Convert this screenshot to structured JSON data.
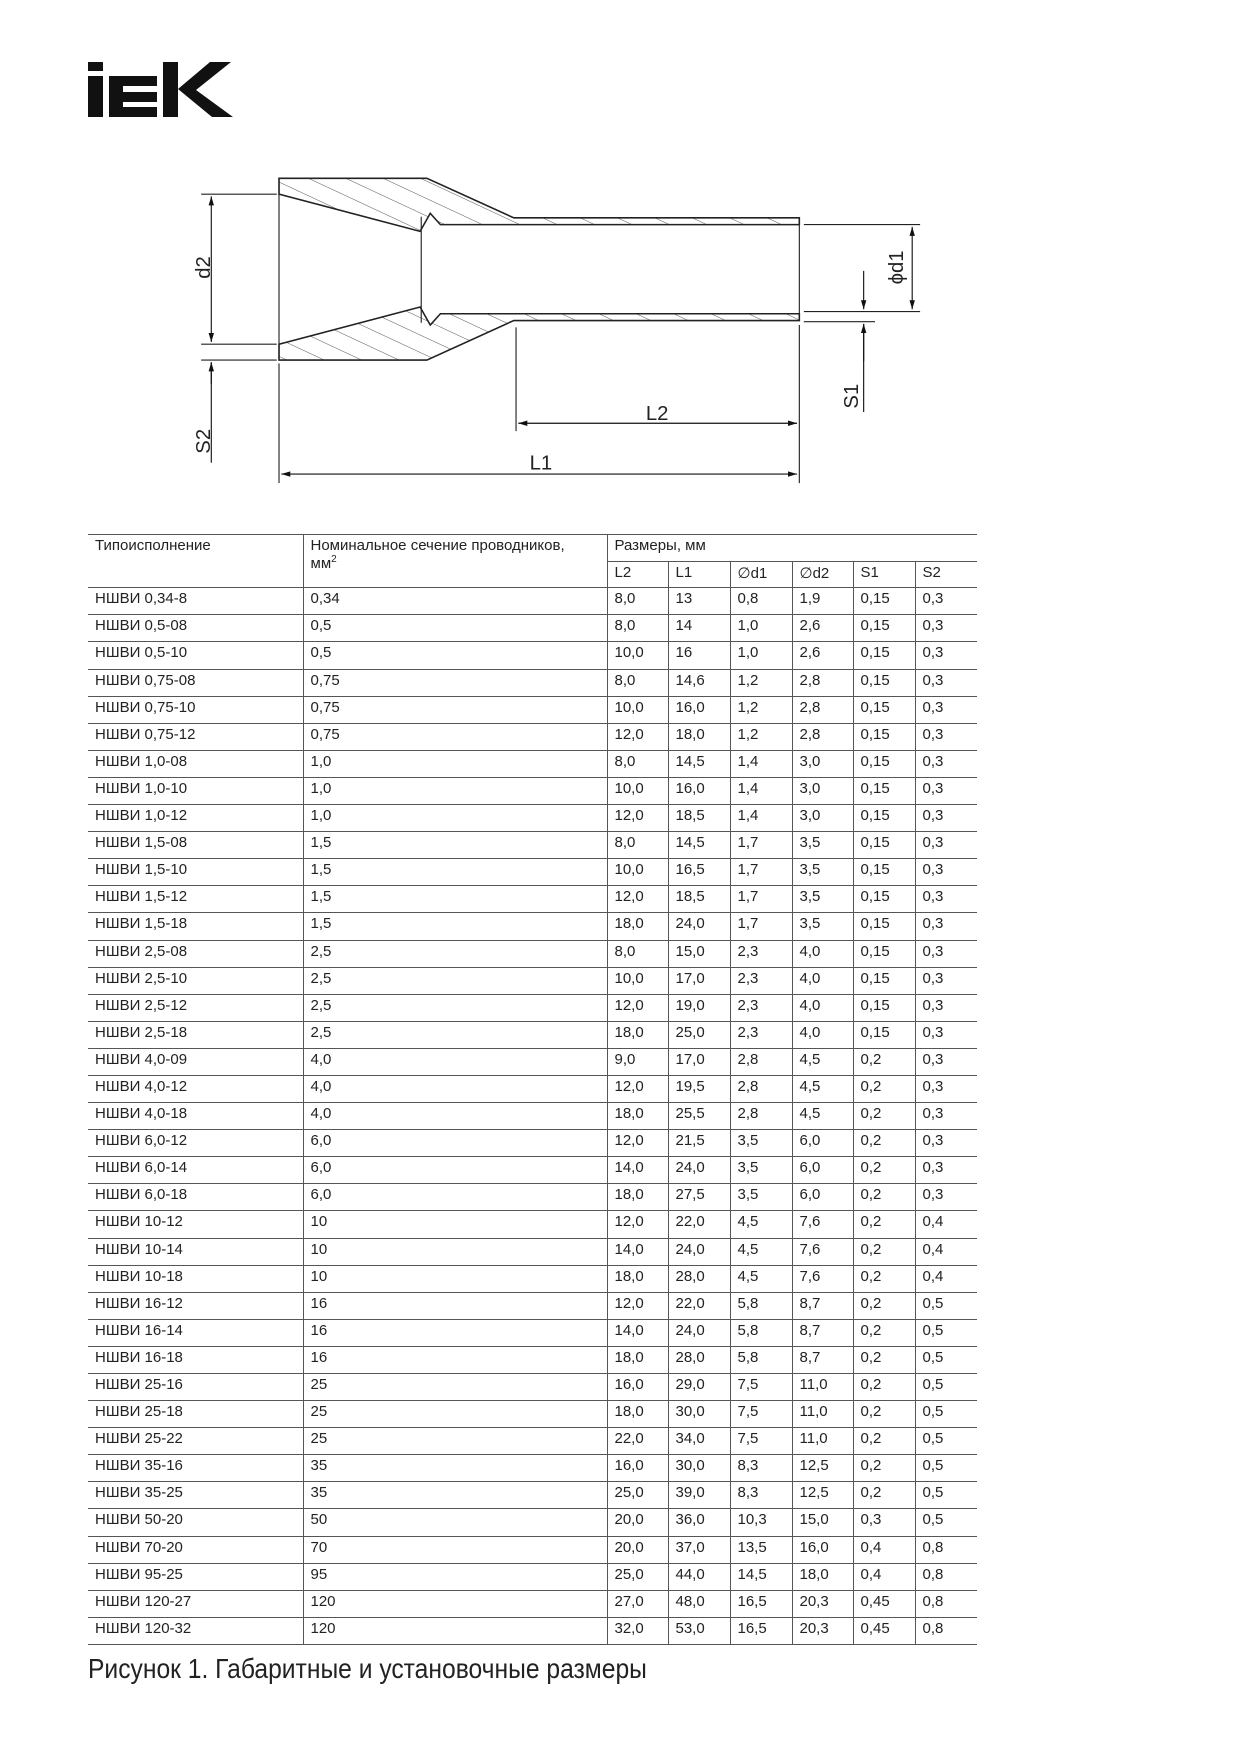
{
  "logo": {
    "text": "IEK"
  },
  "drawing": {
    "labels": {
      "d2": "d2",
      "s2": "S2",
      "d1": "ϕd1",
      "s1": "S1",
      "l2": "L2",
      "l1": "L1"
    }
  },
  "table": {
    "headers": {
      "type": "Типоисполнение",
      "section": "Номинальное сечение проводников,",
      "section_unit": "мм",
      "section_unit_sup": "2",
      "dimensions": "Размеры, мм",
      "columns": [
        "L2",
        "L1",
        "∅d1",
        "∅d2",
        "S1",
        "S2"
      ]
    },
    "rows": [
      [
        "НШВИ 0,34-8",
        "0,34",
        "8,0",
        "13",
        "0,8",
        "1,9",
        "0,15",
        "0,3"
      ],
      [
        "НШВИ 0,5-08",
        "0,5",
        "8,0",
        "14",
        "1,0",
        "2,6",
        "0,15",
        "0,3"
      ],
      [
        "НШВИ 0,5-10",
        "0,5",
        "10,0",
        "16",
        "1,0",
        "2,6",
        "0,15",
        "0,3"
      ],
      [
        "НШВИ 0,75-08",
        "0,75",
        "8,0",
        "14,6",
        "1,2",
        "2,8",
        "0,15",
        "0,3"
      ],
      [
        "НШВИ 0,75-10",
        "0,75",
        "10,0",
        "16,0",
        "1,2",
        "2,8",
        "0,15",
        "0,3"
      ],
      [
        "НШВИ 0,75-12",
        "0,75",
        "12,0",
        "18,0",
        "1,2",
        "2,8",
        "0,15",
        "0,3"
      ],
      [
        "НШВИ 1,0-08",
        "1,0",
        "8,0",
        "14,5",
        "1,4",
        "3,0",
        "0,15",
        "0,3"
      ],
      [
        "НШВИ 1,0-10",
        "1,0",
        "10,0",
        "16,0",
        "1,4",
        "3,0",
        "0,15",
        "0,3"
      ],
      [
        "НШВИ 1,0-12",
        "1,0",
        "12,0",
        "18,5",
        "1,4",
        "3,0",
        "0,15",
        "0,3"
      ],
      [
        "НШВИ 1,5-08",
        "1,5",
        "8,0",
        "14,5",
        "1,7",
        "3,5",
        "0,15",
        "0,3"
      ],
      [
        "НШВИ 1,5-10",
        "1,5",
        "10,0",
        "16,5",
        "1,7",
        "3,5",
        "0,15",
        "0,3"
      ],
      [
        "НШВИ 1,5-12",
        "1,5",
        "12,0",
        "18,5",
        "1,7",
        "3,5",
        "0,15",
        "0,3"
      ],
      [
        "НШВИ 1,5-18",
        "1,5",
        "18,0",
        "24,0",
        "1,7",
        "3,5",
        "0,15",
        "0,3"
      ],
      [
        "НШВИ 2,5-08",
        "2,5",
        "8,0",
        "15,0",
        "2,3",
        "4,0",
        "0,15",
        "0,3"
      ],
      [
        "НШВИ 2,5-10",
        "2,5",
        "10,0",
        "17,0",
        "2,3",
        "4,0",
        "0,15",
        "0,3"
      ],
      [
        "НШВИ 2,5-12",
        "2,5",
        "12,0",
        "19,0",
        "2,3",
        "4,0",
        "0,15",
        "0,3"
      ],
      [
        "НШВИ 2,5-18",
        "2,5",
        "18,0",
        "25,0",
        "2,3",
        "4,0",
        "0,15",
        "0,3"
      ],
      [
        "НШВИ 4,0-09",
        "4,0",
        "9,0",
        "17,0",
        "2,8",
        "4,5",
        "0,2",
        "0,3"
      ],
      [
        "НШВИ 4,0-12",
        "4,0",
        "12,0",
        "19,5",
        "2,8",
        "4,5",
        "0,2",
        "0,3"
      ],
      [
        "НШВИ 4,0-18",
        "4,0",
        "18,0",
        "25,5",
        "2,8",
        "4,5",
        "0,2",
        "0,3"
      ],
      [
        "НШВИ 6,0-12",
        "6,0",
        "12,0",
        "21,5",
        "3,5",
        "6,0",
        "0,2",
        "0,3"
      ],
      [
        "НШВИ 6,0-14",
        "6,0",
        "14,0",
        "24,0",
        "3,5",
        "6,0",
        "0,2",
        "0,3"
      ],
      [
        "НШВИ 6,0-18",
        "6,0",
        "18,0",
        "27,5",
        "3,5",
        "6,0",
        "0,2",
        "0,3"
      ],
      [
        "НШВИ 10-12",
        "10",
        "12,0",
        "22,0",
        "4,5",
        "7,6",
        "0,2",
        "0,4"
      ],
      [
        "НШВИ 10-14",
        "10",
        "14,0",
        "24,0",
        "4,5",
        "7,6",
        "0,2",
        "0,4"
      ],
      [
        "НШВИ 10-18",
        "10",
        "18,0",
        "28,0",
        "4,5",
        "7,6",
        "0,2",
        "0,4"
      ],
      [
        "НШВИ 16-12",
        "16",
        "12,0",
        "22,0",
        "5,8",
        "8,7",
        "0,2",
        "0,5"
      ],
      [
        "НШВИ 16-14",
        "16",
        "14,0",
        "24,0",
        "5,8",
        "8,7",
        "0,2",
        "0,5"
      ],
      [
        "НШВИ 16-18",
        "16",
        "18,0",
        "28,0",
        "5,8",
        "8,7",
        "0,2",
        "0,5"
      ],
      [
        "НШВИ 25-16",
        "25",
        "16,0",
        "29,0",
        "7,5",
        "11,0",
        "0,2",
        "0,5"
      ],
      [
        "НШВИ 25-18",
        "25",
        "18,0",
        "30,0",
        "7,5",
        "11,0",
        "0,2",
        "0,5"
      ],
      [
        "НШВИ 25-22",
        "25",
        "22,0",
        "34,0",
        "7,5",
        "11,0",
        "0,2",
        "0,5"
      ],
      [
        "НШВИ 35-16",
        "35",
        "16,0",
        "30,0",
        "8,3",
        "12,5",
        "0,2",
        "0,5"
      ],
      [
        "НШВИ 35-25",
        "35",
        "25,0",
        "39,0",
        "8,3",
        "12,5",
        "0,2",
        "0,5"
      ],
      [
        "НШВИ 50-20",
        "50",
        "20,0",
        "36,0",
        "10,3",
        "15,0",
        "0,3",
        "0,5"
      ],
      [
        "НШВИ 70-20",
        "70",
        "20,0",
        "37,0",
        "13,5",
        "16,0",
        "0,4",
        "0,8"
      ],
      [
        "НШВИ 95-25",
        "95",
        "25,0",
        "44,0",
        "14,5",
        "18,0",
        "0,4",
        "0,8"
      ],
      [
        "НШВИ 120-27",
        "120",
        "27,0",
        "48,0",
        "16,5",
        "20,3",
        "0,45",
        "0,8"
      ],
      [
        "НШВИ 120-32",
        "120",
        "32,0",
        "53,0",
        "16,5",
        "20,3",
        "0,45",
        "0,8"
      ]
    ]
  },
  "caption": "Рисунок 1. Габаритные и установочные размеры"
}
